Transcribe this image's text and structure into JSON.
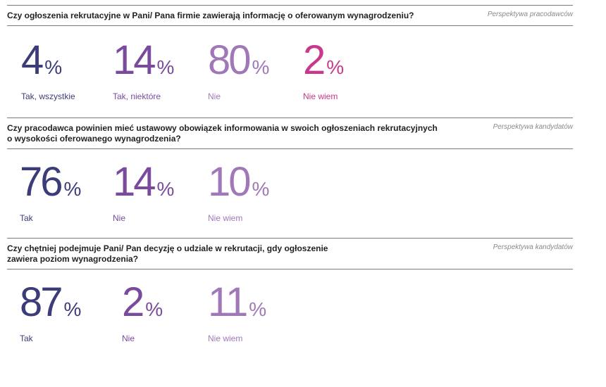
{
  "chart_data": [
    {
      "type": "table",
      "title": "Czy ogłoszenia rekrutacyjne w Pani/ Pana firmie zawierają informację o oferowanym wynagrodzeniu?",
      "perspective": "Perspektywa pracodawców",
      "categories": [
        "Tak, wszystkie",
        "Tak, niektóre",
        "Nie",
        "Nie wiem"
      ],
      "values": [
        4,
        14,
        80,
        2
      ],
      "unit": "%",
      "colors": [
        "#3c3d78",
        "#7a4a9c",
        "#a078b8",
        "#c8388c"
      ]
    },
    {
      "type": "table",
      "title_lines": [
        "Czy pracodawca powinien mieć ustawowy obowiązek informowania w swoich ogłoszeniach rekrutacyjnych",
        "o wysokości oferowanego wynagrodzenia?"
      ],
      "perspective": "Perspektywa kandydatów",
      "categories": [
        "Tak",
        "Nie",
        "Nie wiem"
      ],
      "values": [
        76,
        14,
        10
      ],
      "unit": "%",
      "colors": [
        "#3c3d78",
        "#7a4a9c",
        "#a078b8"
      ]
    },
    {
      "type": "table",
      "title_lines": [
        "Czy chętniej podejmuje Pani/ Pan decyzję o udziale w rekrutacji, gdy ogłoszenie",
        "zawiera poziom wynagrodzenia?"
      ],
      "perspective": "Perspektywa kandydatów",
      "categories": [
        "Tak",
        "Nie",
        "Nie wiem"
      ],
      "values": [
        87,
        2,
        11
      ],
      "unit": "%",
      "colors": [
        "#3c3d78",
        "#7a4a9c",
        "#a078b8"
      ]
    }
  ]
}
